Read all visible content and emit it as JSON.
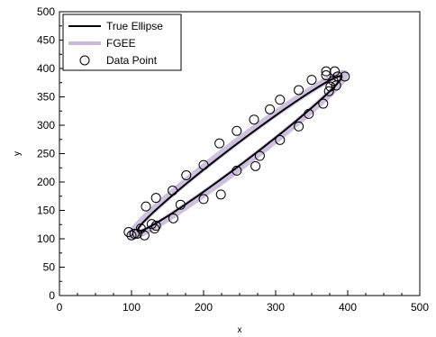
{
  "chart_data": {
    "type": "scatter",
    "xlabel": "x",
    "ylabel": "y",
    "xlim": [
      0,
      500
    ],
    "ylim": [
      0,
      500
    ],
    "xticks": [
      "0",
      "100",
      "200",
      "300",
      "400",
      "500"
    ],
    "yticks": [
      "0",
      "50",
      "100",
      "150",
      "200",
      "250",
      "300",
      "350",
      "400",
      "450",
      "500"
    ],
    "grid": false,
    "legend_position": "top-left",
    "legend": [
      "True Ellipse",
      "FGEE",
      "Data Point"
    ],
    "colors": {
      "true_ellipse": "#000000",
      "fgee": "#c9b9db",
      "data_point": "#000000"
    },
    "true_ellipse": {
      "center": [
        250,
        250
      ],
      "semi_major": 196,
      "semi_minor": 15,
      "angle_deg": 44
    },
    "fgee": {
      "center": [
        248,
        248
      ],
      "semi_major": 205,
      "semi_minor": 18,
      "angle_deg": 44
    },
    "points": [
      [
        96,
        112
      ],
      [
        100,
        106
      ],
      [
        104,
        109
      ],
      [
        108,
        109
      ],
      [
        113,
        118
      ],
      [
        118,
        106
      ],
      [
        120,
        157
      ],
      [
        128,
        126
      ],
      [
        132,
        118
      ],
      [
        134,
        123
      ],
      [
        134,
        172
      ],
      [
        157,
        185
      ],
      [
        158,
        136
      ],
      [
        168,
        160
      ],
      [
        176,
        212
      ],
      [
        200,
        230
      ],
      [
        200,
        170
      ],
      [
        222,
        268
      ],
      [
        224,
        178
      ],
      [
        246,
        290
      ],
      [
        246,
        220
      ],
      [
        270,
        310
      ],
      [
        272,
        228
      ],
      [
        278,
        246
      ],
      [
        292,
        328
      ],
      [
        306,
        345
      ],
      [
        306,
        274
      ],
      [
        332,
        362
      ],
      [
        332,
        298
      ],
      [
        346,
        320
      ],
      [
        350,
        380
      ],
      [
        366,
        338
      ],
      [
        370,
        388
      ],
      [
        370,
        395
      ],
      [
        374,
        360
      ],
      [
        376,
        368
      ],
      [
        380,
        378
      ],
      [
        382,
        395
      ],
      [
        384,
        370
      ],
      [
        386,
        386
      ],
      [
        396,
        386
      ]
    ]
  }
}
